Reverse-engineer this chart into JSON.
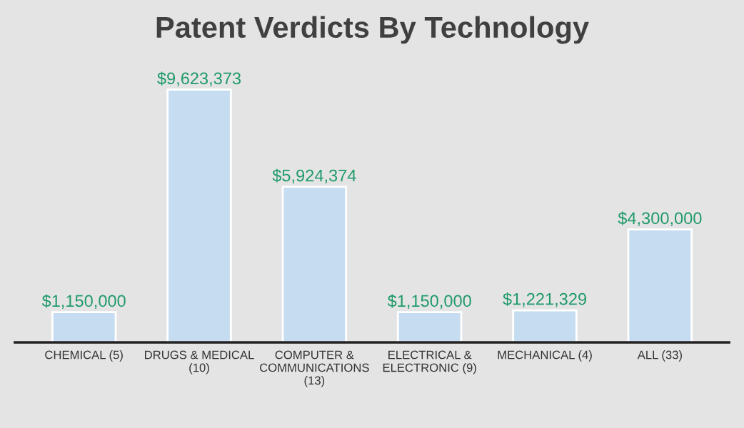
{
  "chart_data": {
    "type": "bar",
    "title": "Patent Verdicts By Technology",
    "categories": [
      "CHEMICAL (5)",
      "DRUGS & MEDICAL\n(10)",
      "COMPUTER &\nCOMMUNICATIONS\n(13)",
      "ELECTRICAL &\nELECTRONIC (9)",
      "MECHANICAL (4)",
      "ALL (33)"
    ],
    "values": [
      1150000,
      9623373,
      5924374,
      1150000,
      1221329,
      4300000
    ],
    "value_labels": [
      "$1,150,000",
      "$9,623,373",
      "$5,924,374",
      "$1,150,000",
      "$1,221,329",
      "$4,300,000"
    ],
    "color": "#c6dcf0",
    "grid": false,
    "legend": false
  }
}
